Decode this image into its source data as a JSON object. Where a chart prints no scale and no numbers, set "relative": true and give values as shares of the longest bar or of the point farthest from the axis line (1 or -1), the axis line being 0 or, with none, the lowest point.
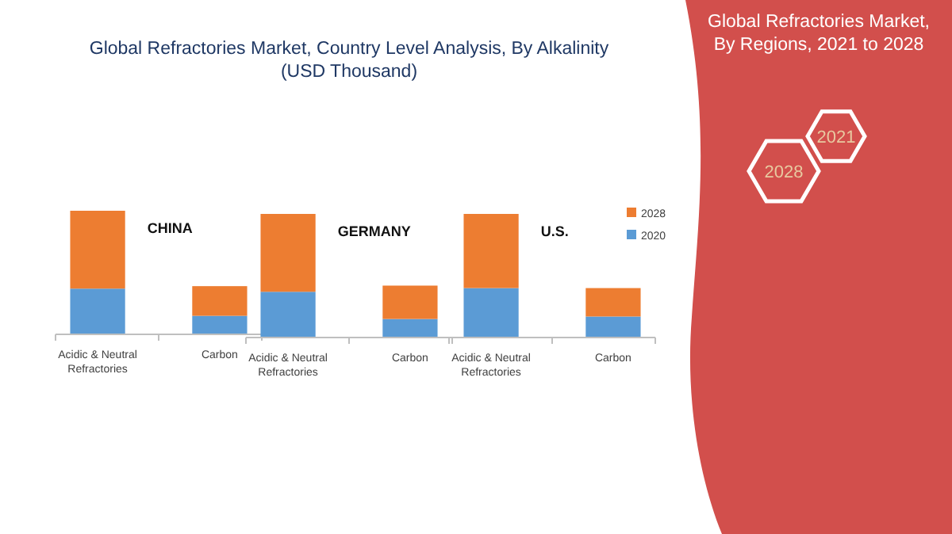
{
  "chart_data": [
    {
      "type": "bar",
      "title": "Global Refractories Market, Country Level Analysis, By Alkalinity (USD Thousand)",
      "subtitle": "CHINA",
      "relative": true,
      "stacked": true,
      "categories": [
        "Acidic & Neutral Refractories",
        "Carbon"
      ],
      "series": [
        {
          "color": "#5b9bd5",
          "values": [
            0.37,
            0.15
          ]
        },
        {
          "color": "#ed7d31",
          "values": [
            0.63,
            0.24
          ]
        }
      ],
      "legend": false
    },
    {
      "type": "bar",
      "subtitle": "GERMANY",
      "relative": true,
      "stacked": true,
      "categories": [
        "Acidic & Neutral Refractories",
        "Carbon"
      ],
      "series": [
        {
          "color": "#5b9bd5",
          "values": [
            0.37,
            0.15
          ]
        },
        {
          "color": "#ed7d31",
          "values": [
            0.63,
            0.27
          ]
        }
      ],
      "legend": false
    },
    {
      "type": "bar",
      "subtitle": "U.S.",
      "relative": true,
      "stacked": true,
      "categories": [
        "Acidic & Neutral Refractories",
        "Carbon"
      ],
      "series": [
        {
          "name": "2020",
          "color": "#5b9bd5",
          "values": [
            0.4,
            0.17
          ]
        },
        {
          "name": "2028",
          "color": "#ed7d31",
          "values": [
            0.6,
            0.23
          ]
        }
      ],
      "legend": "top right"
    },
    {
      "type": "other",
      "title": "Global Refractories Market, By Regions, 2021 to 2028",
      "annotations": [
        "2028",
        "2021"
      ]
    }
  ]
}
